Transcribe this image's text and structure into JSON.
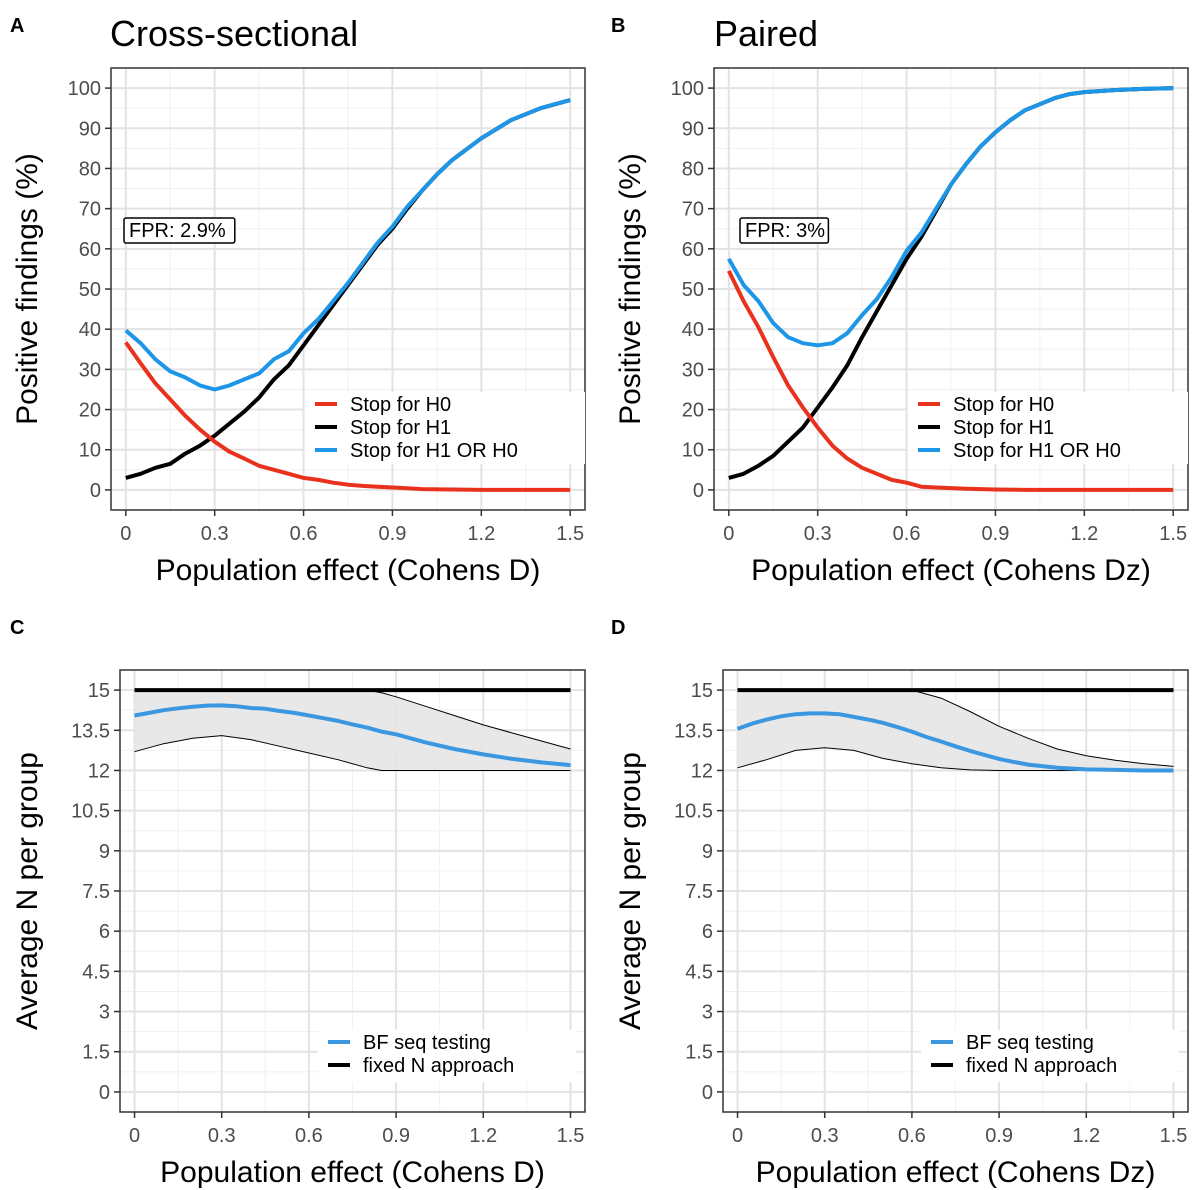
{
  "chart_data": [
    {
      "panel": "A",
      "type": "line",
      "title": "Cross-sectional",
      "xlabel": "Population effect (Cohens D)",
      "ylabel": "Positive findings (%)",
      "xlim": [
        -0.05,
        1.55
      ],
      "ylim": [
        -5,
        105
      ],
      "xticks": [
        "0",
        "0.3",
        "0.6",
        "0.9",
        "1.2",
        "1.5"
      ],
      "xtick_values": [
        0,
        0.3,
        0.6,
        0.9,
        1.2,
        1.5
      ],
      "yticks": [
        "0",
        "10",
        "20",
        "30",
        "40",
        "50",
        "60",
        "70",
        "80",
        "90",
        "100"
      ],
      "ytick_values": [
        0,
        10,
        20,
        30,
        40,
        50,
        60,
        70,
        80,
        90,
        100
      ],
      "annotation": "FPR: 2.9%",
      "legend_position": "bottom-right",
      "series": [
        {
          "name": "Stop for H0",
          "color": "#e8321e",
          "x": [
            0,
            0.05,
            0.1,
            0.15,
            0.2,
            0.25,
            0.3,
            0.35,
            0.4,
            0.45,
            0.5,
            0.55,
            0.6,
            0.65,
            0.7,
            0.75,
            0.8,
            0.85,
            0.9,
            0.95,
            1.0,
            1.1,
            1.2,
            1.3,
            1.4,
            1.5
          ],
          "y": [
            36.7,
            31.5,
            26.5,
            22.5,
            18.5,
            15,
            12,
            9.5,
            7.8,
            6,
            5,
            4,
            3,
            2.5,
            1.8,
            1.3,
            1,
            0.8,
            0.6,
            0.4,
            0.2,
            0.1,
            0,
            0,
            0,
            0
          ]
        },
        {
          "name": "Stop for H1",
          "color": "#000000",
          "x": [
            0,
            0.05,
            0.1,
            0.15,
            0.2,
            0.25,
            0.3,
            0.35,
            0.4,
            0.45,
            0.5,
            0.55,
            0.6,
            0.65,
            0.7,
            0.75,
            0.8,
            0.85,
            0.9,
            0.95,
            1.0,
            1.05,
            1.1,
            1.2,
            1.3,
            1.4,
            1.5
          ],
          "y": [
            3,
            4,
            5.5,
            6.5,
            9,
            11,
            13.5,
            16.5,
            19.5,
            23,
            27.5,
            31,
            36,
            41,
            46,
            51,
            56,
            61,
            65,
            70,
            74.5,
            78.5,
            82,
            87.5,
            92,
            95,
            97
          ]
        },
        {
          "name": "Stop for H1 OR H0",
          "color": "#1e96e8",
          "x": [
            0,
            0.05,
            0.1,
            0.15,
            0.2,
            0.25,
            0.3,
            0.35,
            0.4,
            0.45,
            0.5,
            0.55,
            0.6,
            0.65,
            0.7,
            0.75,
            0.8,
            0.85,
            0.9,
            0.95,
            1.0,
            1.05,
            1.1,
            1.2,
            1.3,
            1.4,
            1.5
          ],
          "y": [
            39.7,
            36.5,
            32.5,
            29.5,
            28,
            26,
            25,
            26,
            27.5,
            29,
            32.5,
            34.5,
            39,
            42.5,
            47,
            51.5,
            56.5,
            61.5,
            65.5,
            70.5,
            74.5,
            78.5,
            82,
            87.5,
            92,
            95,
            97
          ]
        }
      ]
    },
    {
      "panel": "B",
      "type": "line",
      "title": "Paired",
      "xlabel": "Population effect (Cohens Dz)",
      "ylabel": "Positive findings (%)",
      "xlim": [
        -0.05,
        1.55
      ],
      "ylim": [
        -5,
        105
      ],
      "xticks": [
        "0",
        "0.3",
        "0.6",
        "0.9",
        "1.2",
        "1.5"
      ],
      "xtick_values": [
        0,
        0.3,
        0.6,
        0.9,
        1.2,
        1.5
      ],
      "yticks": [
        "0",
        "10",
        "20",
        "30",
        "40",
        "50",
        "60",
        "70",
        "80",
        "90",
        "100"
      ],
      "ytick_values": [
        0,
        10,
        20,
        30,
        40,
        50,
        60,
        70,
        80,
        90,
        100
      ],
      "annotation": "FPR: 3%",
      "legend_position": "bottom-right",
      "series": [
        {
          "name": "Stop for H0",
          "color": "#e8321e",
          "x": [
            0,
            0.05,
            0.1,
            0.15,
            0.2,
            0.25,
            0.3,
            0.35,
            0.4,
            0.45,
            0.5,
            0.55,
            0.6,
            0.65,
            0.7,
            0.8,
            0.9,
            1.0,
            1.1,
            1.2,
            1.3,
            1.4,
            1.5
          ],
          "y": [
            54.5,
            47,
            40.5,
            33,
            26,
            20.5,
            15.5,
            11,
            7.8,
            5.5,
            4,
            2.5,
            1.8,
            0.8,
            0.6,
            0.3,
            0.1,
            0,
            0,
            0,
            0,
            0,
            0
          ]
        },
        {
          "name": "Stop for H1",
          "color": "#000000",
          "x": [
            0,
            0.05,
            0.1,
            0.15,
            0.2,
            0.25,
            0.3,
            0.35,
            0.4,
            0.45,
            0.5,
            0.55,
            0.6,
            0.65,
            0.7,
            0.75,
            0.8,
            0.85,
            0.9,
            0.95,
            1.0,
            1.05,
            1.1,
            1.15,
            1.2,
            1.3,
            1.4,
            1.5
          ],
          "y": [
            3,
            4,
            6,
            8.5,
            12,
            15.5,
            20.5,
            25.5,
            31,
            38,
            44.5,
            51,
            57.5,
            63,
            69.5,
            76,
            81,
            85.5,
            89,
            92,
            94.5,
            96,
            97.5,
            98.5,
            99,
            99.5,
            99.8,
            100
          ]
        },
        {
          "name": "Stop for H1 OR H0",
          "color": "#1e96e8",
          "x": [
            0,
            0.05,
            0.1,
            0.15,
            0.2,
            0.25,
            0.3,
            0.35,
            0.4,
            0.45,
            0.5,
            0.55,
            0.6,
            0.65,
            0.7,
            0.75,
            0.8,
            0.85,
            0.9,
            0.95,
            1.0,
            1.05,
            1.1,
            1.15,
            1.2,
            1.3,
            1.4,
            1.5
          ],
          "y": [
            57.5,
            51,
            47,
            41.5,
            38,
            36.5,
            36,
            36.5,
            39,
            43.5,
            47.5,
            53,
            59.5,
            64,
            70,
            76,
            81,
            85.5,
            89,
            92,
            94.5,
            96,
            97.5,
            98.5,
            99,
            99.5,
            99.8,
            100
          ]
        }
      ]
    },
    {
      "panel": "C",
      "type": "line",
      "title": "",
      "xlabel": "Population effect (Cohens D)",
      "ylabel": "Average N per group",
      "xlim": [
        -0.05,
        1.55
      ],
      "ylim": [
        -0.75,
        15.75
      ],
      "xticks": [
        "0",
        "0.3",
        "0.6",
        "0.9",
        "1.2",
        "1.5"
      ],
      "xtick_values": [
        0,
        0.3,
        0.6,
        0.9,
        1.2,
        1.5
      ],
      "yticks": [
        "0",
        "1.5",
        "3",
        "4.5",
        "6",
        "7.5",
        "9",
        "10.5",
        "12",
        "13.5",
        "15"
      ],
      "ytick_values": [
        0,
        1.5,
        3,
        4.5,
        6,
        7.5,
        9,
        10.5,
        12,
        13.5,
        15
      ],
      "legend_position": "bottom-right",
      "ribbon": {
        "color": "#e6e6e6",
        "x": [
          0,
          0.1,
          0.2,
          0.3,
          0.4,
          0.5,
          0.6,
          0.7,
          0.8,
          0.85,
          0.9,
          1.0,
          1.1,
          1.2,
          1.3,
          1.4,
          1.5
        ],
        "upper": [
          15,
          15,
          15,
          15,
          15,
          15,
          15,
          15,
          15,
          14.9,
          14.75,
          14.4,
          14.05,
          13.7,
          13.4,
          13.1,
          12.8
        ],
        "lower": [
          12.7,
          13.0,
          13.2,
          13.3,
          13.15,
          12.9,
          12.65,
          12.4,
          12.1,
          12,
          12,
          12,
          12,
          12,
          12,
          12,
          12
        ]
      },
      "series": [
        {
          "name": "BF seq testing",
          "color": "#3b97e0",
          "x": [
            0,
            0.05,
            0.1,
            0.15,
            0.2,
            0.25,
            0.3,
            0.35,
            0.4,
            0.45,
            0.5,
            0.55,
            0.6,
            0.65,
            0.7,
            0.75,
            0.8,
            0.85,
            0.9,
            0.95,
            1.0,
            1.1,
            1.2,
            1.3,
            1.4,
            1.5
          ],
          "y": [
            14.05,
            14.15,
            14.25,
            14.32,
            14.38,
            14.42,
            14.43,
            14.4,
            14.33,
            14.3,
            14.22,
            14.15,
            14.05,
            13.95,
            13.85,
            13.72,
            13.6,
            13.45,
            13.35,
            13.2,
            13.05,
            12.8,
            12.6,
            12.43,
            12.3,
            12.2
          ]
        },
        {
          "name": "fixed N approach",
          "color": "#000000",
          "x": [
            0,
            1.5
          ],
          "y": [
            15,
            15
          ]
        }
      ]
    },
    {
      "panel": "D",
      "type": "line",
      "title": "",
      "xlabel": "Population effect (Cohens Dz)",
      "ylabel": "Average N per group",
      "xlim": [
        -0.05,
        1.55
      ],
      "ylim": [
        -0.75,
        15.75
      ],
      "xticks": [
        "0",
        "0.3",
        "0.6",
        "0.9",
        "1.2",
        "1.5"
      ],
      "xtick_values": [
        0,
        0.3,
        0.6,
        0.9,
        1.2,
        1.5
      ],
      "yticks": [
        "0",
        "1.5",
        "3",
        "4.5",
        "6",
        "7.5",
        "9",
        "10.5",
        "12",
        "13.5",
        "15"
      ],
      "ytick_values": [
        0,
        1.5,
        3,
        4.5,
        6,
        7.5,
        9,
        10.5,
        12,
        13.5,
        15
      ],
      "legend_position": "bottom-right",
      "ribbon": {
        "color": "#e6e6e6",
        "x": [
          0,
          0.1,
          0.2,
          0.3,
          0.4,
          0.5,
          0.6,
          0.7,
          0.8,
          0.9,
          1.0,
          1.1,
          1.2,
          1.3,
          1.4,
          1.5
        ],
        "upper": [
          15,
          15,
          15,
          15,
          15,
          15,
          15,
          14.7,
          14.2,
          13.65,
          13.2,
          12.8,
          12.55,
          12.38,
          12.25,
          12.15
        ],
        "lower": [
          12.1,
          12.4,
          12.75,
          12.85,
          12.75,
          12.45,
          12.25,
          12.1,
          12.02,
          12,
          12,
          12,
          12,
          12,
          12,
          12
        ]
      },
      "series": [
        {
          "name": "BF seq testing",
          "color": "#3b97e0",
          "x": [
            0,
            0.05,
            0.1,
            0.15,
            0.2,
            0.25,
            0.3,
            0.35,
            0.4,
            0.45,
            0.5,
            0.55,
            0.6,
            0.65,
            0.7,
            0.75,
            0.8,
            0.85,
            0.9,
            0.95,
            1.0,
            1.1,
            1.2,
            1.3,
            1.4,
            1.5
          ],
          "y": [
            13.55,
            13.75,
            13.9,
            14.02,
            14.1,
            14.13,
            14.13,
            14.1,
            14.0,
            13.9,
            13.78,
            13.62,
            13.45,
            13.25,
            13.08,
            12.9,
            12.73,
            12.58,
            12.43,
            12.32,
            12.22,
            12.1,
            12.04,
            12.02,
            12.0,
            12.0
          ]
        },
        {
          "name": "fixed N approach",
          "color": "#000000",
          "x": [
            0,
            1.5
          ],
          "y": [
            15,
            15
          ]
        }
      ]
    }
  ]
}
